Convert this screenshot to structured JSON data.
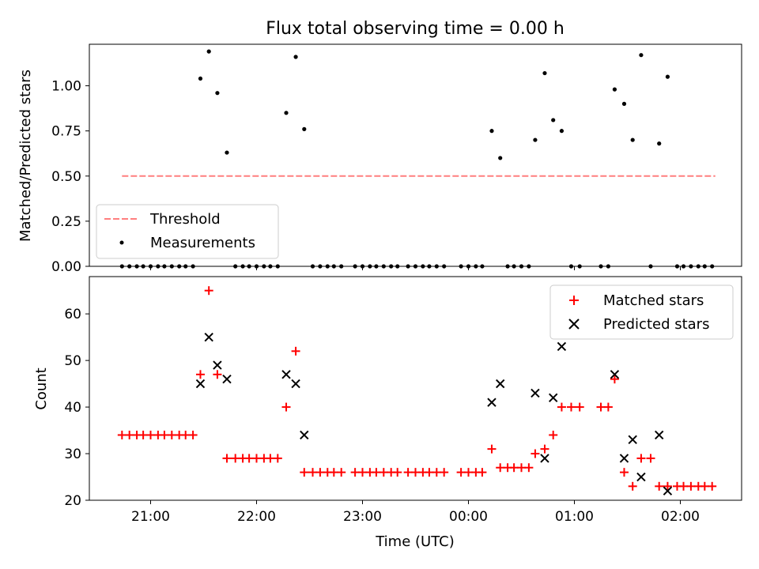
{
  "figure": {
    "title": "Flux total observing time = 0.00 h",
    "xlabel": "Time (UTC)",
    "xticks": [
      "21:00",
      "22:00",
      "23:00",
      "00:00",
      "01:00",
      "02:00"
    ]
  },
  "chart_data": [
    {
      "type": "scatter",
      "ylabel": "Matched/Predicted stars",
      "ylim": [
        0.0,
        1.23
      ],
      "yticks": [
        "0.00",
        "0.25",
        "0.50",
        "0.75",
        "1.00"
      ],
      "legend_position": "lower-left",
      "threshold": {
        "name": "Threshold",
        "value": 0.5,
        "x_range": [
          20.73,
          26.33
        ],
        "color": "#ff7f7f",
        "style": "dashed"
      },
      "series": [
        {
          "name": "Measurements",
          "color": "#000000",
          "points": [
            [
              20.73,
              0
            ],
            [
              20.8,
              0
            ],
            [
              20.87,
              0
            ],
            [
              20.93,
              0
            ],
            [
              21.0,
              0
            ],
            [
              21.07,
              0
            ],
            [
              21.13,
              0
            ],
            [
              21.2,
              0
            ],
            [
              21.27,
              0
            ],
            [
              21.33,
              0
            ],
            [
              21.4,
              0
            ],
            [
              21.47,
              1.04
            ],
            [
              21.55,
              1.19
            ],
            [
              21.63,
              0.96
            ],
            [
              21.72,
              0.63
            ],
            [
              21.8,
              0
            ],
            [
              21.87,
              0
            ],
            [
              21.93,
              0
            ],
            [
              22.0,
              0
            ],
            [
              22.07,
              0
            ],
            [
              22.13,
              0
            ],
            [
              22.2,
              0
            ],
            [
              22.28,
              0.85
            ],
            [
              22.37,
              1.16
            ],
            [
              22.45,
              0.76
            ],
            [
              22.53,
              0
            ],
            [
              22.6,
              0
            ],
            [
              22.67,
              0
            ],
            [
              22.73,
              0
            ],
            [
              22.8,
              0
            ],
            [
              22.93,
              0
            ],
            [
              23.0,
              0
            ],
            [
              23.07,
              0
            ],
            [
              23.13,
              0
            ],
            [
              23.2,
              0
            ],
            [
              23.27,
              0
            ],
            [
              23.33,
              0
            ],
            [
              23.43,
              0
            ],
            [
              23.5,
              0
            ],
            [
              23.57,
              0
            ],
            [
              23.63,
              0
            ],
            [
              23.7,
              0
            ],
            [
              23.77,
              0
            ],
            [
              23.93,
              0
            ],
            [
              24.0,
              0
            ],
            [
              24.07,
              0
            ],
            [
              24.13,
              0
            ],
            [
              24.22,
              0.75
            ],
            [
              24.3,
              0.6
            ],
            [
              24.37,
              0
            ],
            [
              24.43,
              0
            ],
            [
              24.5,
              0
            ],
            [
              24.57,
              0
            ],
            [
              24.63,
              0.7
            ],
            [
              24.72,
              1.07
            ],
            [
              24.8,
              0.81
            ],
            [
              24.88,
              0.75
            ],
            [
              24.97,
              0
            ],
            [
              25.05,
              0
            ],
            [
              25.25,
              0
            ],
            [
              25.32,
              0
            ],
            [
              25.38,
              0.98
            ],
            [
              25.47,
              0.9
            ],
            [
              25.55,
              0.7
            ],
            [
              25.63,
              1.17
            ],
            [
              25.72,
              0
            ],
            [
              25.8,
              0.68
            ],
            [
              25.88,
              1.05
            ],
            [
              25.97,
              0
            ],
            [
              26.03,
              0
            ],
            [
              26.1,
              0
            ],
            [
              26.17,
              0
            ],
            [
              26.23,
              0
            ],
            [
              26.3,
              0
            ]
          ]
        }
      ]
    },
    {
      "type": "scatter",
      "ylabel": "Count",
      "ylim": [
        20,
        68
      ],
      "yticks": [
        "20",
        "30",
        "40",
        "50",
        "60"
      ],
      "legend_position": "upper-right",
      "series": [
        {
          "name": "Matched stars",
          "color": "#ff0000",
          "marker": "plus",
          "points": [
            [
              20.73,
              34
            ],
            [
              20.8,
              34
            ],
            [
              20.87,
              34
            ],
            [
              20.93,
              34
            ],
            [
              21.0,
              34
            ],
            [
              21.07,
              34
            ],
            [
              21.13,
              34
            ],
            [
              21.2,
              34
            ],
            [
              21.27,
              34
            ],
            [
              21.33,
              34
            ],
            [
              21.4,
              34
            ],
            [
              21.47,
              47
            ],
            [
              21.55,
              65
            ],
            [
              21.63,
              47
            ],
            [
              21.72,
              29
            ],
            [
              21.8,
              29
            ],
            [
              21.87,
              29
            ],
            [
              21.93,
              29
            ],
            [
              22.0,
              29
            ],
            [
              22.07,
              29
            ],
            [
              22.13,
              29
            ],
            [
              22.2,
              29
            ],
            [
              22.28,
              40
            ],
            [
              22.37,
              52
            ],
            [
              22.45,
              26
            ],
            [
              22.53,
              26
            ],
            [
              22.6,
              26
            ],
            [
              22.67,
              26
            ],
            [
              22.73,
              26
            ],
            [
              22.8,
              26
            ],
            [
              22.93,
              26
            ],
            [
              23.0,
              26
            ],
            [
              23.07,
              26
            ],
            [
              23.13,
              26
            ],
            [
              23.2,
              26
            ],
            [
              23.27,
              26
            ],
            [
              23.33,
              26
            ],
            [
              23.43,
              26
            ],
            [
              23.5,
              26
            ],
            [
              23.57,
              26
            ],
            [
              23.63,
              26
            ],
            [
              23.7,
              26
            ],
            [
              23.77,
              26
            ],
            [
              23.93,
              26
            ],
            [
              24.0,
              26
            ],
            [
              24.07,
              26
            ],
            [
              24.13,
              26
            ],
            [
              24.22,
              31
            ],
            [
              24.3,
              27
            ],
            [
              24.37,
              27
            ],
            [
              24.43,
              27
            ],
            [
              24.5,
              27
            ],
            [
              24.57,
              27
            ],
            [
              24.63,
              30
            ],
            [
              24.72,
              31
            ],
            [
              24.8,
              34
            ],
            [
              24.88,
              40
            ],
            [
              24.97,
              40
            ],
            [
              25.05,
              40
            ],
            [
              25.25,
              40
            ],
            [
              25.32,
              40
            ],
            [
              25.38,
              46
            ],
            [
              25.47,
              26
            ],
            [
              25.55,
              23
            ],
            [
              25.63,
              29
            ],
            [
              25.72,
              29
            ],
            [
              25.8,
              23
            ],
            [
              25.88,
              23
            ],
            [
              25.97,
              23
            ],
            [
              26.03,
              23
            ],
            [
              26.1,
              23
            ],
            [
              26.17,
              23
            ],
            [
              26.23,
              23
            ],
            [
              26.3,
              23
            ]
          ]
        },
        {
          "name": "Predicted stars",
          "color": "#000000",
          "marker": "x",
          "points": [
            [
              21.47,
              45
            ],
            [
              21.55,
              55
            ],
            [
              21.63,
              49
            ],
            [
              21.72,
              46
            ],
            [
              22.28,
              47
            ],
            [
              22.37,
              45
            ],
            [
              22.45,
              34
            ],
            [
              24.22,
              41
            ],
            [
              24.3,
              45
            ],
            [
              24.63,
              43
            ],
            [
              24.72,
              29
            ],
            [
              24.8,
              42
            ],
            [
              24.88,
              53
            ],
            [
              25.38,
              47
            ],
            [
              25.47,
              29
            ],
            [
              25.55,
              33
            ],
            [
              25.63,
              25
            ],
            [
              25.8,
              34
            ],
            [
              25.88,
              22
            ]
          ]
        }
      ]
    }
  ]
}
